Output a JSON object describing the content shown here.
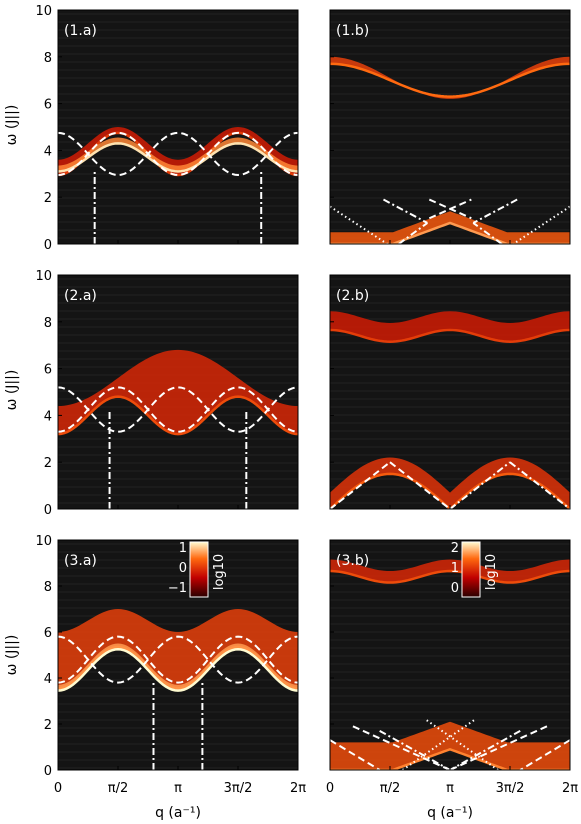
{
  "figure": {
    "ylabel": "ω (J||)",
    "xlabel": "q (a⁻¹)",
    "xticks": [
      "0",
      "π/2",
      "π",
      "3π/2",
      "2π"
    ],
    "yticks": [
      "0",
      "2",
      "4",
      "6",
      "8",
      "10"
    ],
    "colorbar_label": "log10"
  },
  "colors": {
    "background": "#141414",
    "band_dark": "#8b0000",
    "band_mid": "#e8400a",
    "band_bright": "#fff4a8",
    "overlay": "#ffffff"
  },
  "chart_data": [
    {
      "id": "1.a",
      "label": "(1.a)",
      "type": "heatmap",
      "xlim": [
        0,
        6.2832
      ],
      "ylim": [
        0,
        10
      ],
      "bands": [
        {
          "lower": {
            "kind": "cos",
            "a": 3.85,
            "b": -0.9,
            "n": 2
          },
          "upper": {
            "kind": "cos",
            "a": 4.3,
            "b": -0.7,
            "n": 2
          },
          "intensity": 0.55
        },
        {
          "lower": {
            "kind": "cos",
            "a": 3.7,
            "b": -0.6,
            "n": 2
          },
          "upper": {
            "kind": "cos",
            "a": 3.95,
            "b": -0.6,
            "n": 2
          },
          "intensity": 0.95
        }
      ],
      "dashed": [
        {
          "kind": "cos",
          "a": 3.85,
          "b": -0.9,
          "n": 2
        },
        {
          "kind": "cos",
          "a": 3.85,
          "b": 0.9,
          "n": 2
        }
      ],
      "vlines": [
        {
          "x": 0.96,
          "y0": 0,
          "y1": 3.1
        },
        {
          "x": 5.32,
          "y0": 0,
          "y1": 3.1
        }
      ]
    },
    {
      "id": "1.b",
      "label": "(1.b)",
      "type": "heatmap",
      "xlim": [
        0,
        6.2832
      ],
      "ylim": [
        0,
        10
      ],
      "bands": [
        {
          "lower": {
            "kind": "cos",
            "a": 7.0,
            "b": 0.7,
            "n": 1
          },
          "upper": {
            "kind": "cos",
            "a": 7.1,
            "b": 0.9,
            "n": 1
          },
          "intensity": 0.7
        },
        {
          "lower": {
            "kind": "tri",
            "a": 0.0,
            "b": 0.0,
            "n": 1
          },
          "upper": {
            "kind": "tri",
            "a": 0.5,
            "b": 0.0,
            "n": 1
          },
          "intensity": 0.8
        }
      ],
      "dashed": [
        {
          "kind": "line",
          "x0": 2.6,
          "y0": 1.1,
          "x1": 3.7,
          "y1": 1.9
        },
        {
          "kind": "line",
          "x0": 2.6,
          "y0": 1.9,
          "x1": 3.7,
          "y1": 1.1
        }
      ],
      "dashdot": [
        {
          "kind": "line",
          "x0": 1.4,
          "y0": 1.9,
          "x1": 2.55,
          "y1": 0.9
        },
        {
          "kind": "line",
          "x0": 4.9,
          "y0": 1.9,
          "x1": 3.75,
          "y1": 0.9
        },
        {
          "kind": "line",
          "x0": 1.8,
          "y0": 0.0,
          "x1": 2.55,
          "y1": 0.9
        },
        {
          "kind": "line",
          "x0": 4.5,
          "y0": 0.0,
          "x1": 3.75,
          "y1": 0.9
        }
      ],
      "dotted": [
        {
          "kind": "line",
          "x0": 0.0,
          "y0": 1.6,
          "x1": 1.5,
          "y1": 0.0
        },
        {
          "kind": "line",
          "x0": 6.28,
          "y0": 1.6,
          "x1": 4.8,
          "y1": 0.0
        }
      ]
    },
    {
      "id": "2.a",
      "label": "(2.a)",
      "type": "heatmap",
      "xlim": [
        0,
        6.2832
      ],
      "ylim": [
        0,
        10
      ],
      "bands": [
        {
          "lower": {
            "kind": "cos",
            "a": 4.0,
            "b": -0.8,
            "n": 2
          },
          "upper": {
            "kind": "cos",
            "a": 5.6,
            "b": -1.2,
            "n": 1
          },
          "intensity": 0.6
        }
      ],
      "dashed": [
        {
          "kind": "cos",
          "a": 4.25,
          "b": -0.95,
          "n": 2
        },
        {
          "kind": "cos",
          "a": 4.25,
          "b": 0.95,
          "n": 2
        }
      ],
      "vlines": [
        {
          "x": 1.35,
          "y0": 0,
          "y1": 4.2
        },
        {
          "x": 4.93,
          "y0": 0,
          "y1": 4.2
        }
      ]
    },
    {
      "id": "2.b",
      "label": "(2.b)",
      "type": "heatmap",
      "xlim": [
        0,
        6.2832
      ],
      "ylim": [
        0,
        10
      ],
      "bands": [
        {
          "lower": {
            "kind": "flat",
            "a": 7.4,
            "b": 0.0,
            "n": 1
          },
          "upper": {
            "kind": "flat",
            "a": 8.2,
            "b": 0.0,
            "n": 1
          },
          "intensity": 0.55
        },
        {
          "lower": {
            "kind": "tri2",
            "a": 0.0,
            "b": 0.0,
            "n": 1
          },
          "upper": {
            "kind": "tri2",
            "a": 0.7,
            "b": 0.0,
            "n": 1
          },
          "intensity": 0.65
        }
      ],
      "dashed": [
        {
          "kind": "line",
          "x0": 0.0,
          "y0": 0.0,
          "x1": 1.57,
          "y1": 2.0
        },
        {
          "kind": "line",
          "x0": 1.57,
          "y0": 2.0,
          "x1": 3.1416,
          "y1": 0.0
        }
      ],
      "dashdot": [
        {
          "kind": "line",
          "x0": 3.1416,
          "y0": 0.0,
          "x1": 4.71,
          "y1": 2.0
        },
        {
          "kind": "line",
          "x0": 4.71,
          "y0": 2.0,
          "x1": 6.2832,
          "y1": 0.0
        }
      ]
    },
    {
      "id": "3.a",
      "label": "(3.a)",
      "type": "heatmap",
      "xlim": [
        0,
        6.2832
      ],
      "ylim": [
        0,
        10
      ],
      "colorbar": {
        "ticks": [
          "1",
          "0",
          "−1"
        ],
        "label": "log10"
      },
      "bands": [
        {
          "lower": {
            "kind": "cos",
            "a": 4.45,
            "b": -0.9,
            "n": 2
          },
          "upper": {
            "kind": "cos",
            "a": 6.5,
            "b": -0.5,
            "n": 2
          },
          "intensity": 0.7
        },
        {
          "lower": {
            "kind": "cos",
            "a": 4.35,
            "b": -0.9,
            "n": 2
          },
          "upper": {
            "kind": "cos",
            "a": 4.6,
            "b": -0.9,
            "n": 2
          },
          "intensity": 1.0
        }
      ],
      "dashed": [
        {
          "kind": "cos",
          "a": 4.8,
          "b": -1.0,
          "n": 2
        },
        {
          "kind": "cos",
          "a": 4.8,
          "b": 1.0,
          "n": 2
        }
      ],
      "vlines": [
        {
          "x": 2.5,
          "y0": 0,
          "y1": 3.8
        },
        {
          "x": 3.78,
          "y0": 0,
          "y1": 3.8
        }
      ]
    },
    {
      "id": "3.b",
      "label": "(3.b)",
      "type": "heatmap",
      "xlim": [
        0,
        6.2832
      ],
      "ylim": [
        0,
        10
      ],
      "colorbar": {
        "ticks": [
          "2",
          "1",
          "0"
        ],
        "label": "log10"
      },
      "bands": [
        {
          "lower": {
            "kind": "flat",
            "a": 8.4,
            "b": 0.0,
            "n": 1
          },
          "upper": {
            "kind": "flat",
            "a": 8.9,
            "b": 0.0,
            "n": 1
          },
          "intensity": 0.6
        },
        {
          "lower": {
            "kind": "tri",
            "a": 0.0,
            "b": 0.0,
            "n": 1
          },
          "upper": {
            "kind": "tri",
            "a": 1.2,
            "b": 0.0,
            "n": 1
          },
          "intensity": 0.75
        }
      ],
      "dashed": [
        {
          "kind": "line",
          "x0": 0.0,
          "y0": 1.3,
          "x1": 1.3,
          "y1": 0.0
        },
        {
          "kind": "line",
          "x0": 6.2832,
          "y0": 1.3,
          "x1": 4.98,
          "y1": 0.0
        },
        {
          "kind": "line",
          "x0": 0.6,
          "y0": 1.9,
          "x1": 3.1416,
          "y1": 0.0
        },
        {
          "kind": "line",
          "x0": 5.68,
          "y0": 1.9,
          "x1": 3.1416,
          "y1": 0.0
        }
      ],
      "dashdot": [
        {
          "kind": "line",
          "x0": 1.3,
          "y0": 1.7,
          "x1": 3.1416,
          "y1": 0.0
        },
        {
          "kind": "line",
          "x0": 4.98,
          "y0": 1.7,
          "x1": 3.1416,
          "y1": 0.0
        }
      ],
      "dotted": [
        {
          "kind": "line",
          "x0": 1.9,
          "y0": 0.0,
          "x1": 3.8,
          "y1": 2.2
        },
        {
          "kind": "line",
          "x0": 4.4,
          "y0": 0.0,
          "x1": 2.5,
          "y1": 2.2
        }
      ]
    }
  ]
}
